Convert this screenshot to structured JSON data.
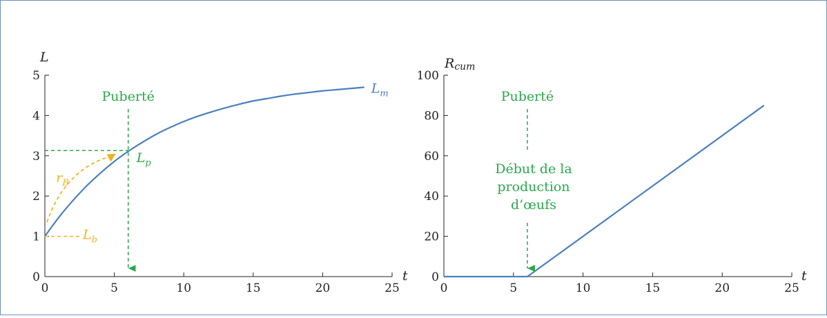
{
  "colors": {
    "curve": "#4a7fc0",
    "puberty": "#2aa84a",
    "birth": "#f2b21c",
    "axis": "#222222",
    "frame": "#6b8fbf"
  },
  "chart_data": [
    {
      "type": "line",
      "title": "",
      "xlabel": "t",
      "ylabel": "L",
      "xlim": [
        0,
        25
      ],
      "ylim": [
        0,
        5
      ],
      "xticks": [
        "0",
        "5",
        "10",
        "15",
        "20",
        "25"
      ],
      "yticks": [
        "0",
        "1",
        "2",
        "3",
        "4",
        "5"
      ],
      "grid": false,
      "series": [
        {
          "name": "L_m",
          "x": [
            0,
            1,
            2,
            3,
            4,
            5,
            6,
            7,
            8,
            9,
            10,
            11,
            12,
            13,
            14,
            15,
            16,
            17,
            18,
            19,
            20,
            21,
            22,
            23
          ],
          "y": [
            1.0,
            1.47,
            1.88,
            2.25,
            2.57,
            2.86,
            3.11,
            3.33,
            3.53,
            3.7,
            3.85,
            3.98,
            4.09,
            4.19,
            4.28,
            4.36,
            4.42,
            4.48,
            4.53,
            4.57,
            4.61,
            4.64,
            4.67,
            4.7
          ]
        }
      ],
      "annotations": {
        "puberty_label": "Puberté",
        "puberty_t": 6,
        "Lp_value": 3.13,
        "Lp_label_main": "L",
        "Lp_label_sub": "p",
        "Lb_value": 1,
        "Lb_label_main": "L",
        "Lb_label_sub": "b",
        "rB_label_main": "r",
        "rB_label_sub": "B",
        "Lm_label_main": "L",
        "Lm_label_sub": "m"
      }
    },
    {
      "type": "line",
      "title": "",
      "xlabel": "t",
      "ylabel_main": "R",
      "ylabel_sub": "cum",
      "xlim": [
        0,
        25
      ],
      "ylim": [
        0,
        100
      ],
      "xticks": [
        "0",
        "5",
        "10",
        "15",
        "20",
        "25"
      ],
      "yticks": [
        "0",
        "20",
        "40",
        "60",
        "80",
        "100"
      ],
      "grid": false,
      "series": [
        {
          "x": [
            0,
            6,
            23
          ],
          "y": [
            0,
            0,
            85
          ]
        }
      ],
      "annotations": {
        "puberty_label": "Puberté",
        "puberty_t": 6,
        "start_text": [
          "Début de la",
          "production",
          "d’œufs"
        ]
      }
    }
  ]
}
